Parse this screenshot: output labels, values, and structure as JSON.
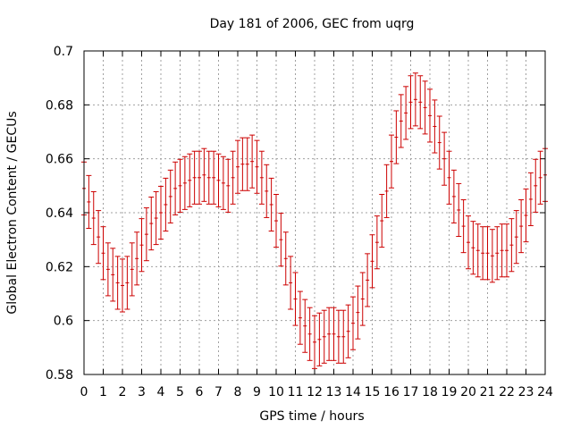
{
  "chart_data": {
    "type": "errorbar",
    "title": "Day 181 of 2006, GEC from uqrg",
    "xlabel": "GPS time / hours",
    "ylabel": "Global Electron Content / GECUs",
    "xlim": [
      0,
      24
    ],
    "ylim": [
      0.58,
      0.7
    ],
    "x_ticks": [
      "0",
      "1",
      "2",
      "3",
      "4",
      "5",
      "6",
      "7",
      "8",
      "9",
      "10",
      "11",
      "12",
      "13",
      "14",
      "15",
      "16",
      "17",
      "18",
      "19",
      "20",
      "21",
      "22",
      "23",
      "24"
    ],
    "y_ticks": [
      "0.58",
      "0.6",
      "0.62",
      "0.64",
      "0.66",
      "0.68",
      "0.7"
    ],
    "grid": true,
    "series_color": "#cc0000",
    "error": 0.0098,
    "points": [
      [
        0.0,
        0.649
      ],
      [
        0.25,
        0.644
      ],
      [
        0.5,
        0.638
      ],
      [
        0.75,
        0.631
      ],
      [
        1.0,
        0.625
      ],
      [
        1.25,
        0.619
      ],
      [
        1.5,
        0.617
      ],
      [
        1.75,
        0.614
      ],
      [
        2.0,
        0.613
      ],
      [
        2.25,
        0.614
      ],
      [
        2.5,
        0.619
      ],
      [
        2.75,
        0.623
      ],
      [
        3.0,
        0.628
      ],
      [
        3.25,
        0.632
      ],
      [
        3.5,
        0.636
      ],
      [
        3.75,
        0.638
      ],
      [
        4.0,
        0.64
      ],
      [
        4.25,
        0.643
      ],
      [
        4.5,
        0.646
      ],
      [
        4.75,
        0.649
      ],
      [
        5.0,
        0.65
      ],
      [
        5.25,
        0.651
      ],
      [
        5.5,
        0.652
      ],
      [
        5.75,
        0.653
      ],
      [
        6.0,
        0.653
      ],
      [
        6.25,
        0.654
      ],
      [
        6.5,
        0.653
      ],
      [
        6.75,
        0.653
      ],
      [
        7.0,
        0.652
      ],
      [
        7.25,
        0.651
      ],
      [
        7.5,
        0.65
      ],
      [
        7.75,
        0.653
      ],
      [
        8.0,
        0.657
      ],
      [
        8.25,
        0.658
      ],
      [
        8.5,
        0.658
      ],
      [
        8.75,
        0.659
      ],
      [
        9.0,
        0.657
      ],
      [
        9.25,
        0.653
      ],
      [
        9.5,
        0.648
      ],
      [
        9.75,
        0.643
      ],
      [
        10.0,
        0.637
      ],
      [
        10.25,
        0.63
      ],
      [
        10.5,
        0.623
      ],
      [
        10.75,
        0.614
      ],
      [
        11.0,
        0.608
      ],
      [
        11.25,
        0.601
      ],
      [
        11.5,
        0.598
      ],
      [
        11.75,
        0.595
      ],
      [
        12.0,
        0.592
      ],
      [
        12.25,
        0.593
      ],
      [
        12.5,
        0.594
      ],
      [
        12.75,
        0.595
      ],
      [
        13.0,
        0.595
      ],
      [
        13.25,
        0.594
      ],
      [
        13.5,
        0.594
      ],
      [
        13.75,
        0.596
      ],
      [
        14.0,
        0.599
      ],
      [
        14.25,
        0.603
      ],
      [
        14.5,
        0.608
      ],
      [
        14.75,
        0.615
      ],
      [
        15.0,
        0.622
      ],
      [
        15.25,
        0.629
      ],
      [
        15.5,
        0.637
      ],
      [
        15.75,
        0.648
      ],
      [
        16.0,
        0.659
      ],
      [
        16.25,
        0.668
      ],
      [
        16.5,
        0.674
      ],
      [
        16.75,
        0.677
      ],
      [
        17.0,
        0.681
      ],
      [
        17.25,
        0.682
      ],
      [
        17.5,
        0.681
      ],
      [
        17.75,
        0.679
      ],
      [
        18.0,
        0.676
      ],
      [
        18.25,
        0.672
      ],
      [
        18.5,
        0.666
      ],
      [
        18.75,
        0.66
      ],
      [
        19.0,
        0.653
      ],
      [
        19.25,
        0.646
      ],
      [
        19.5,
        0.641
      ],
      [
        19.75,
        0.635
      ],
      [
        20.0,
        0.629
      ],
      [
        20.25,
        0.627
      ],
      [
        20.5,
        0.626
      ],
      [
        20.75,
        0.625
      ],
      [
        21.0,
        0.625
      ],
      [
        21.25,
        0.624
      ],
      [
        21.5,
        0.625
      ],
      [
        21.75,
        0.626
      ],
      [
        22.0,
        0.626
      ],
      [
        22.25,
        0.628
      ],
      [
        22.5,
        0.631
      ],
      [
        22.75,
        0.635
      ],
      [
        23.0,
        0.639
      ],
      [
        23.25,
        0.645
      ],
      [
        23.5,
        0.65
      ],
      [
        23.75,
        0.653
      ],
      [
        24.0,
        0.654
      ]
    ]
  }
}
